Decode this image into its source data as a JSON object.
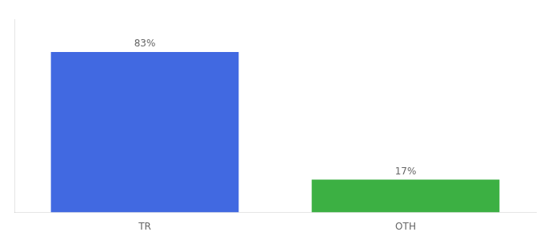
{
  "chart_data": {
    "type": "bar",
    "categories": [
      "TR",
      "OTH"
    ],
    "values": [
      83,
      17
    ],
    "colors": [
      "#4169e1",
      "#3cb043"
    ],
    "value_labels": [
      "83%",
      "17%"
    ],
    "data_labels": true,
    "ylim": [
      0,
      100
    ],
    "tick_labels": "x",
    "grid": false
  }
}
